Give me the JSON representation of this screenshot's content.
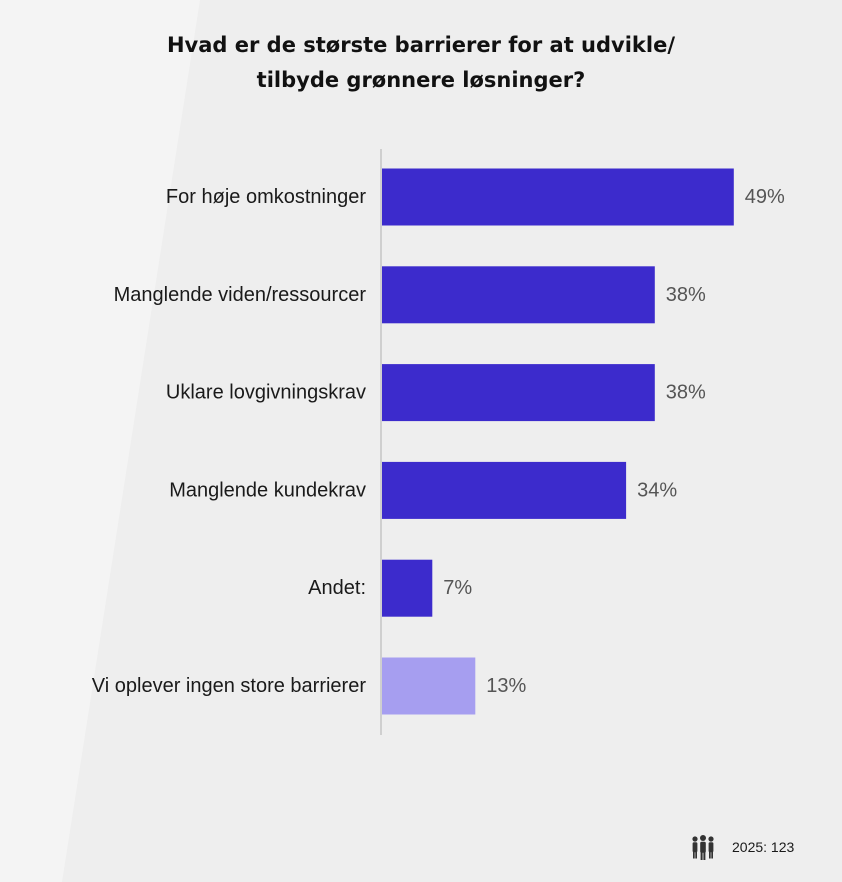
{
  "title_lines": [
    "Hvad er de største barrierer for at udvikle/",
    "tilbyde grønnere løsninger?"
  ],
  "chart_data": {
    "type": "bar",
    "orientation": "horizontal",
    "categories": [
      "For høje omkostninger",
      "Manglende viden/ressourcer",
      "Uklare lovgivningskrav",
      "Manglende kundekrav",
      "Andet:",
      "Vi oplever ingen store barrierer"
    ],
    "values": [
      49,
      38,
      38,
      34,
      7,
      13
    ],
    "value_labels": [
      "49%",
      "38%",
      "38%",
      "34%",
      "7%",
      "13%"
    ],
    "unit": "%",
    "xlim": [
      0,
      60
    ],
    "grid": false,
    "legend": "none",
    "colors": [
      "#3c2bcc",
      "#3c2bcc",
      "#3c2bcc",
      "#3c2bcc",
      "#3c2bcc",
      "#a69ef0"
    ]
  },
  "footer": {
    "icon": "people-icon",
    "sample_text": "2025: 123"
  }
}
